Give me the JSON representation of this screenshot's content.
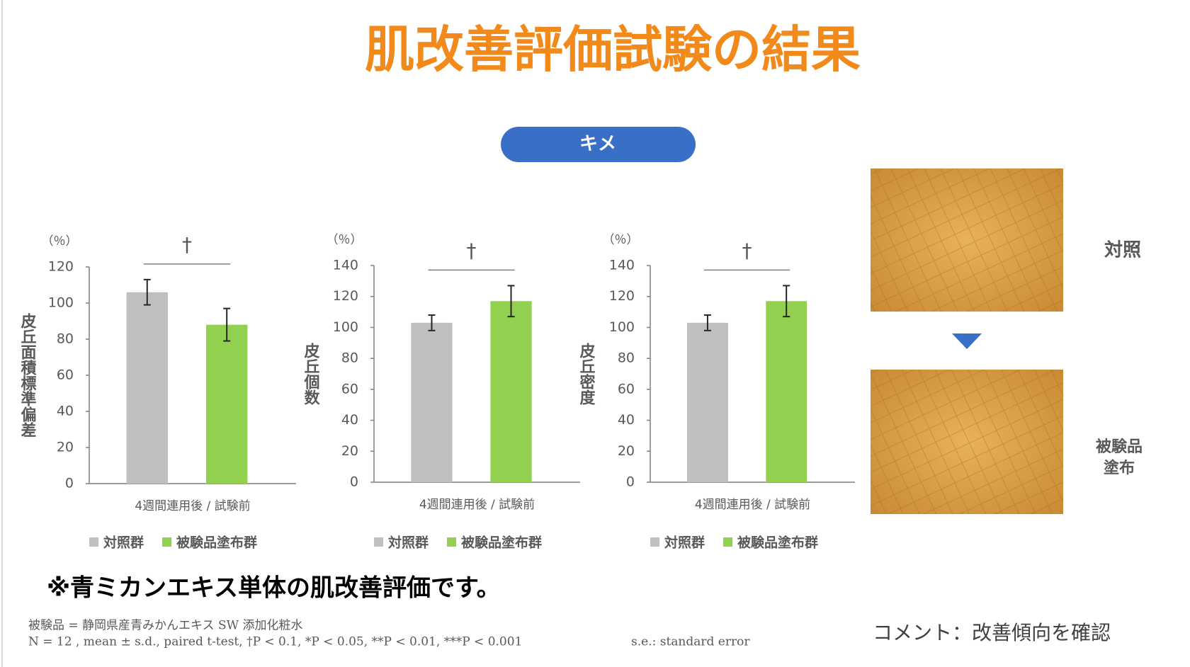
{
  "title": "肌改善評価試験の結果",
  "section": "キメ",
  "chart_data": [
    {
      "type": "bar",
      "unit": "（％）",
      "ylabel": "皮丘面積標準偏差",
      "categories": [
        "4週間連用後 / 試験前"
      ],
      "series": [
        {
          "name": "対照群",
          "color": "#bfbfbf",
          "values": [
            106
          ],
          "errors": [
            7
          ]
        },
        {
          "name": "被験品塗布群",
          "color": "#92d050",
          "values": [
            88
          ],
          "errors": [
            9
          ]
        }
      ],
      "ylim": [
        0,
        120
      ],
      "yticks": [
        0,
        20,
        40,
        60,
        80,
        100,
        120
      ],
      "annotation": "†"
    },
    {
      "type": "bar",
      "unit": "（％）",
      "ylabel": "皮丘個数",
      "categories": [
        "4週間連用後 / 試験前"
      ],
      "series": [
        {
          "name": "対照群",
          "color": "#bfbfbf",
          "values": [
            103
          ],
          "errors": [
            5
          ]
        },
        {
          "name": "被験品塗布群",
          "color": "#92d050",
          "values": [
            117
          ],
          "errors": [
            10
          ]
        }
      ],
      "ylim": [
        0,
        140
      ],
      "yticks": [
        0,
        20,
        40,
        60,
        80,
        100,
        120,
        140
      ],
      "annotation": "†"
    },
    {
      "type": "bar",
      "unit": "（％）",
      "ylabel": "皮丘密度",
      "categories": [
        "4週間連用後 / 試験前"
      ],
      "series": [
        {
          "name": "対照群",
          "color": "#bfbfbf",
          "values": [
            103
          ],
          "errors": [
            5
          ]
        },
        {
          "name": "被験品塗布群",
          "color": "#92d050",
          "values": [
            117
          ],
          "errors": [
            10
          ]
        }
      ],
      "ylim": [
        0,
        140
      ],
      "yticks": [
        0,
        20,
        40,
        60,
        80,
        100,
        120,
        140
      ],
      "annotation": "†"
    }
  ],
  "images": {
    "before": "対照",
    "after": [
      "被験品",
      "塗布"
    ]
  },
  "note": "※青ミカンエキス単体の肌改善評価です。",
  "footnotes": [
    "被験品 = 静岡県産青みかんエキス SW 添加化粧水",
    "N = 12 , mean ± s.d., paired t-test, †P < 0.1, *P < 0.05, **P < 0.01, ***P < 0.001"
  ],
  "se_note": "s.e.: standard error",
  "comment": "コメント：改善傾向を確認"
}
